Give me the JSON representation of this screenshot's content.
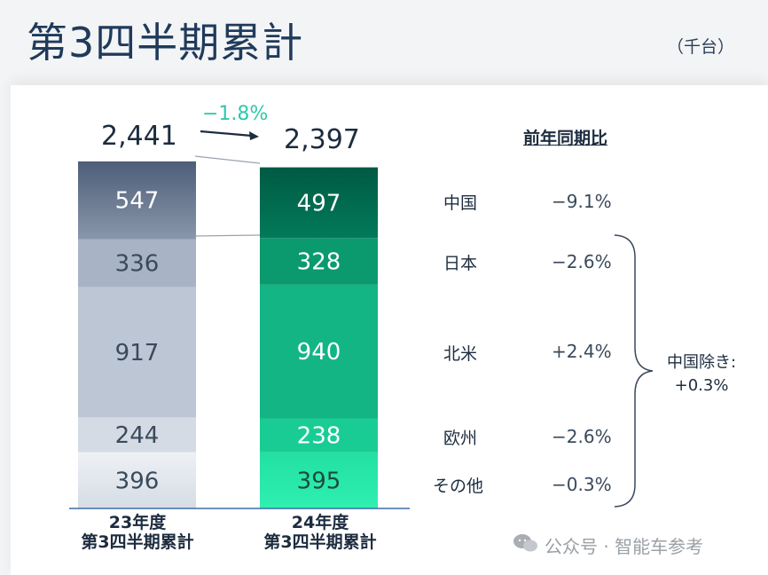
{
  "header": {
    "title": "第3四半期累計",
    "unit": "（千台）"
  },
  "chart_data": {
    "type": "bar",
    "categories": [
      "23年度 第3四半期累計",
      "24年度 第3四半期累計"
    ],
    "series": [
      {
        "name": "中国",
        "values": [
          547,
          497
        ]
      },
      {
        "name": "日本",
        "values": [
          336,
          328
        ]
      },
      {
        "name": "北米",
        "values": [
          917,
          940
        ]
      },
      {
        "name": "欧州",
        "values": [
          244,
          238
        ]
      },
      {
        "name": "その他",
        "values": [
          396,
          395
        ]
      }
    ],
    "totals": [
      "2,441",
      "2,397"
    ],
    "stacked": true,
    "colors": {
      "fy23": [
        "#5a6b86",
        "#a8b4c6",
        "#bcc6d4",
        "#d5dbe4",
        "#eceff4"
      ],
      "fy24": [
        "#006a4e",
        "#0a9a6e",
        "#13b585",
        "#19cc93",
        "#27e8a8"
      ]
    }
  },
  "columns": {
    "fy23": {
      "line1": "23年度",
      "line2": "第3四半期累計",
      "total": "2,441"
    },
    "fy24": {
      "line1": "24年度",
      "line2": "第3四半期累計",
      "total": "2,397"
    }
  },
  "change": "−1.8%",
  "yoy": {
    "header": "前年同期比",
    "rows": [
      {
        "region": "中国",
        "value": "−9.1%"
      },
      {
        "region": "日本",
        "value": "−2.6%"
      },
      {
        "region": "北米",
        "value": "+2.4%"
      },
      {
        "region": "欧州",
        "value": "−2.6%"
      },
      {
        "region": "その他",
        "value": "−0.3%"
      }
    ],
    "ex_china_label": "中国除き:",
    "ex_china_value": "+0.3%"
  },
  "watermark": "公众号 · 智能车参考"
}
